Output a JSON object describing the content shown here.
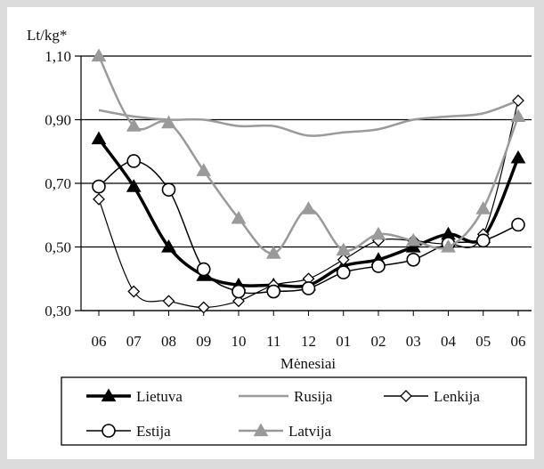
{
  "chart_data": {
    "type": "line",
    "title": "",
    "ylabel": "Lt/kg*",
    "xlabel": "Mėnesiai",
    "ylim": [
      0.3,
      1.1
    ],
    "yticks": [
      0.3,
      0.5,
      0.7,
      0.9,
      1.1
    ],
    "ytick_labels": [
      "0,30",
      "0,50",
      "0,70",
      "0,90",
      "1,10"
    ],
    "categories": [
      "06",
      "07",
      "08",
      "09",
      "10",
      "11",
      "12",
      "01",
      "02",
      "03",
      "04",
      "05",
      "06"
    ],
    "grid": "horizontal",
    "legend_position": "bottom",
    "series": [
      {
        "name": "Lietuva",
        "marker": "filled-triangle",
        "color": "#000000",
        "width": 3.5,
        "values": [
          0.84,
          0.69,
          0.5,
          0.41,
          0.38,
          0.38,
          0.38,
          0.44,
          0.46,
          0.5,
          0.54,
          0.53,
          0.78
        ]
      },
      {
        "name": "Rusija",
        "marker": "none",
        "color": "#9a9a9a",
        "width": 2.5,
        "values": [
          0.93,
          0.91,
          0.9,
          0.9,
          0.88,
          0.88,
          0.85,
          0.86,
          0.87,
          0.9,
          0.91,
          0.92,
          0.96
        ]
      },
      {
        "name": "Lenkija",
        "marker": "open-diamond",
        "color": "#000000",
        "width": 1.2,
        "values": [
          0.65,
          0.36,
          0.33,
          0.31,
          0.33,
          0.38,
          0.4,
          0.46,
          0.52,
          0.52,
          0.51,
          0.54,
          0.96
        ]
      },
      {
        "name": "Estija",
        "marker": "open-circle",
        "color": "#000000",
        "width": 1.5,
        "values": [
          0.69,
          0.77,
          0.68,
          0.43,
          0.36,
          0.36,
          0.37,
          0.42,
          0.44,
          0.46,
          0.51,
          0.52,
          0.57
        ]
      },
      {
        "name": "Latvija",
        "marker": "filled-triangle",
        "color": "#9a9a9a",
        "width": 2.5,
        "values": [
          1.1,
          0.88,
          0.89,
          0.74,
          0.59,
          0.48,
          0.62,
          0.49,
          0.54,
          0.52,
          0.5,
          0.62,
          0.91
        ]
      }
    ]
  }
}
